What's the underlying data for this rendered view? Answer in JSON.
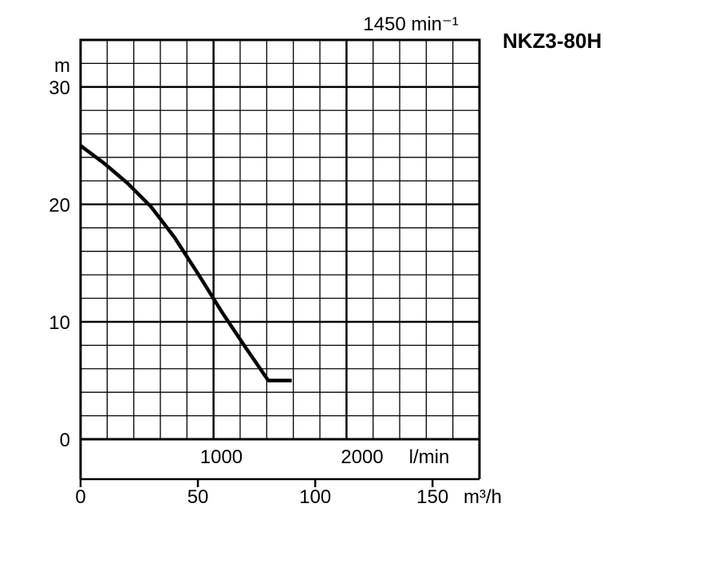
{
  "chart_data": {
    "type": "line",
    "title": "NKZ3-80H",
    "speed_label": "1450 min⁻¹",
    "ylabel": "m",
    "ylim": [
      0,
      34
    ],
    "yticks": [
      0,
      10,
      20,
      30
    ],
    "grid": true,
    "xlim_m3h": [
      0,
      170
    ],
    "xticks_m3h": [
      0,
      50,
      100,
      150
    ],
    "xunit_m3h": "m³/h",
    "xticks_lmin": [
      1000,
      2000
    ],
    "xunit_lmin": "l/min",
    "series": [
      {
        "x": [
          0,
          10,
          20,
          30,
          40,
          50,
          60,
          70,
          80,
          90
        ],
        "y": [
          25,
          23.5,
          21.8,
          19.8,
          17.2,
          14.1,
          10.9,
          7.9,
          5,
          5
        ]
      }
    ]
  }
}
